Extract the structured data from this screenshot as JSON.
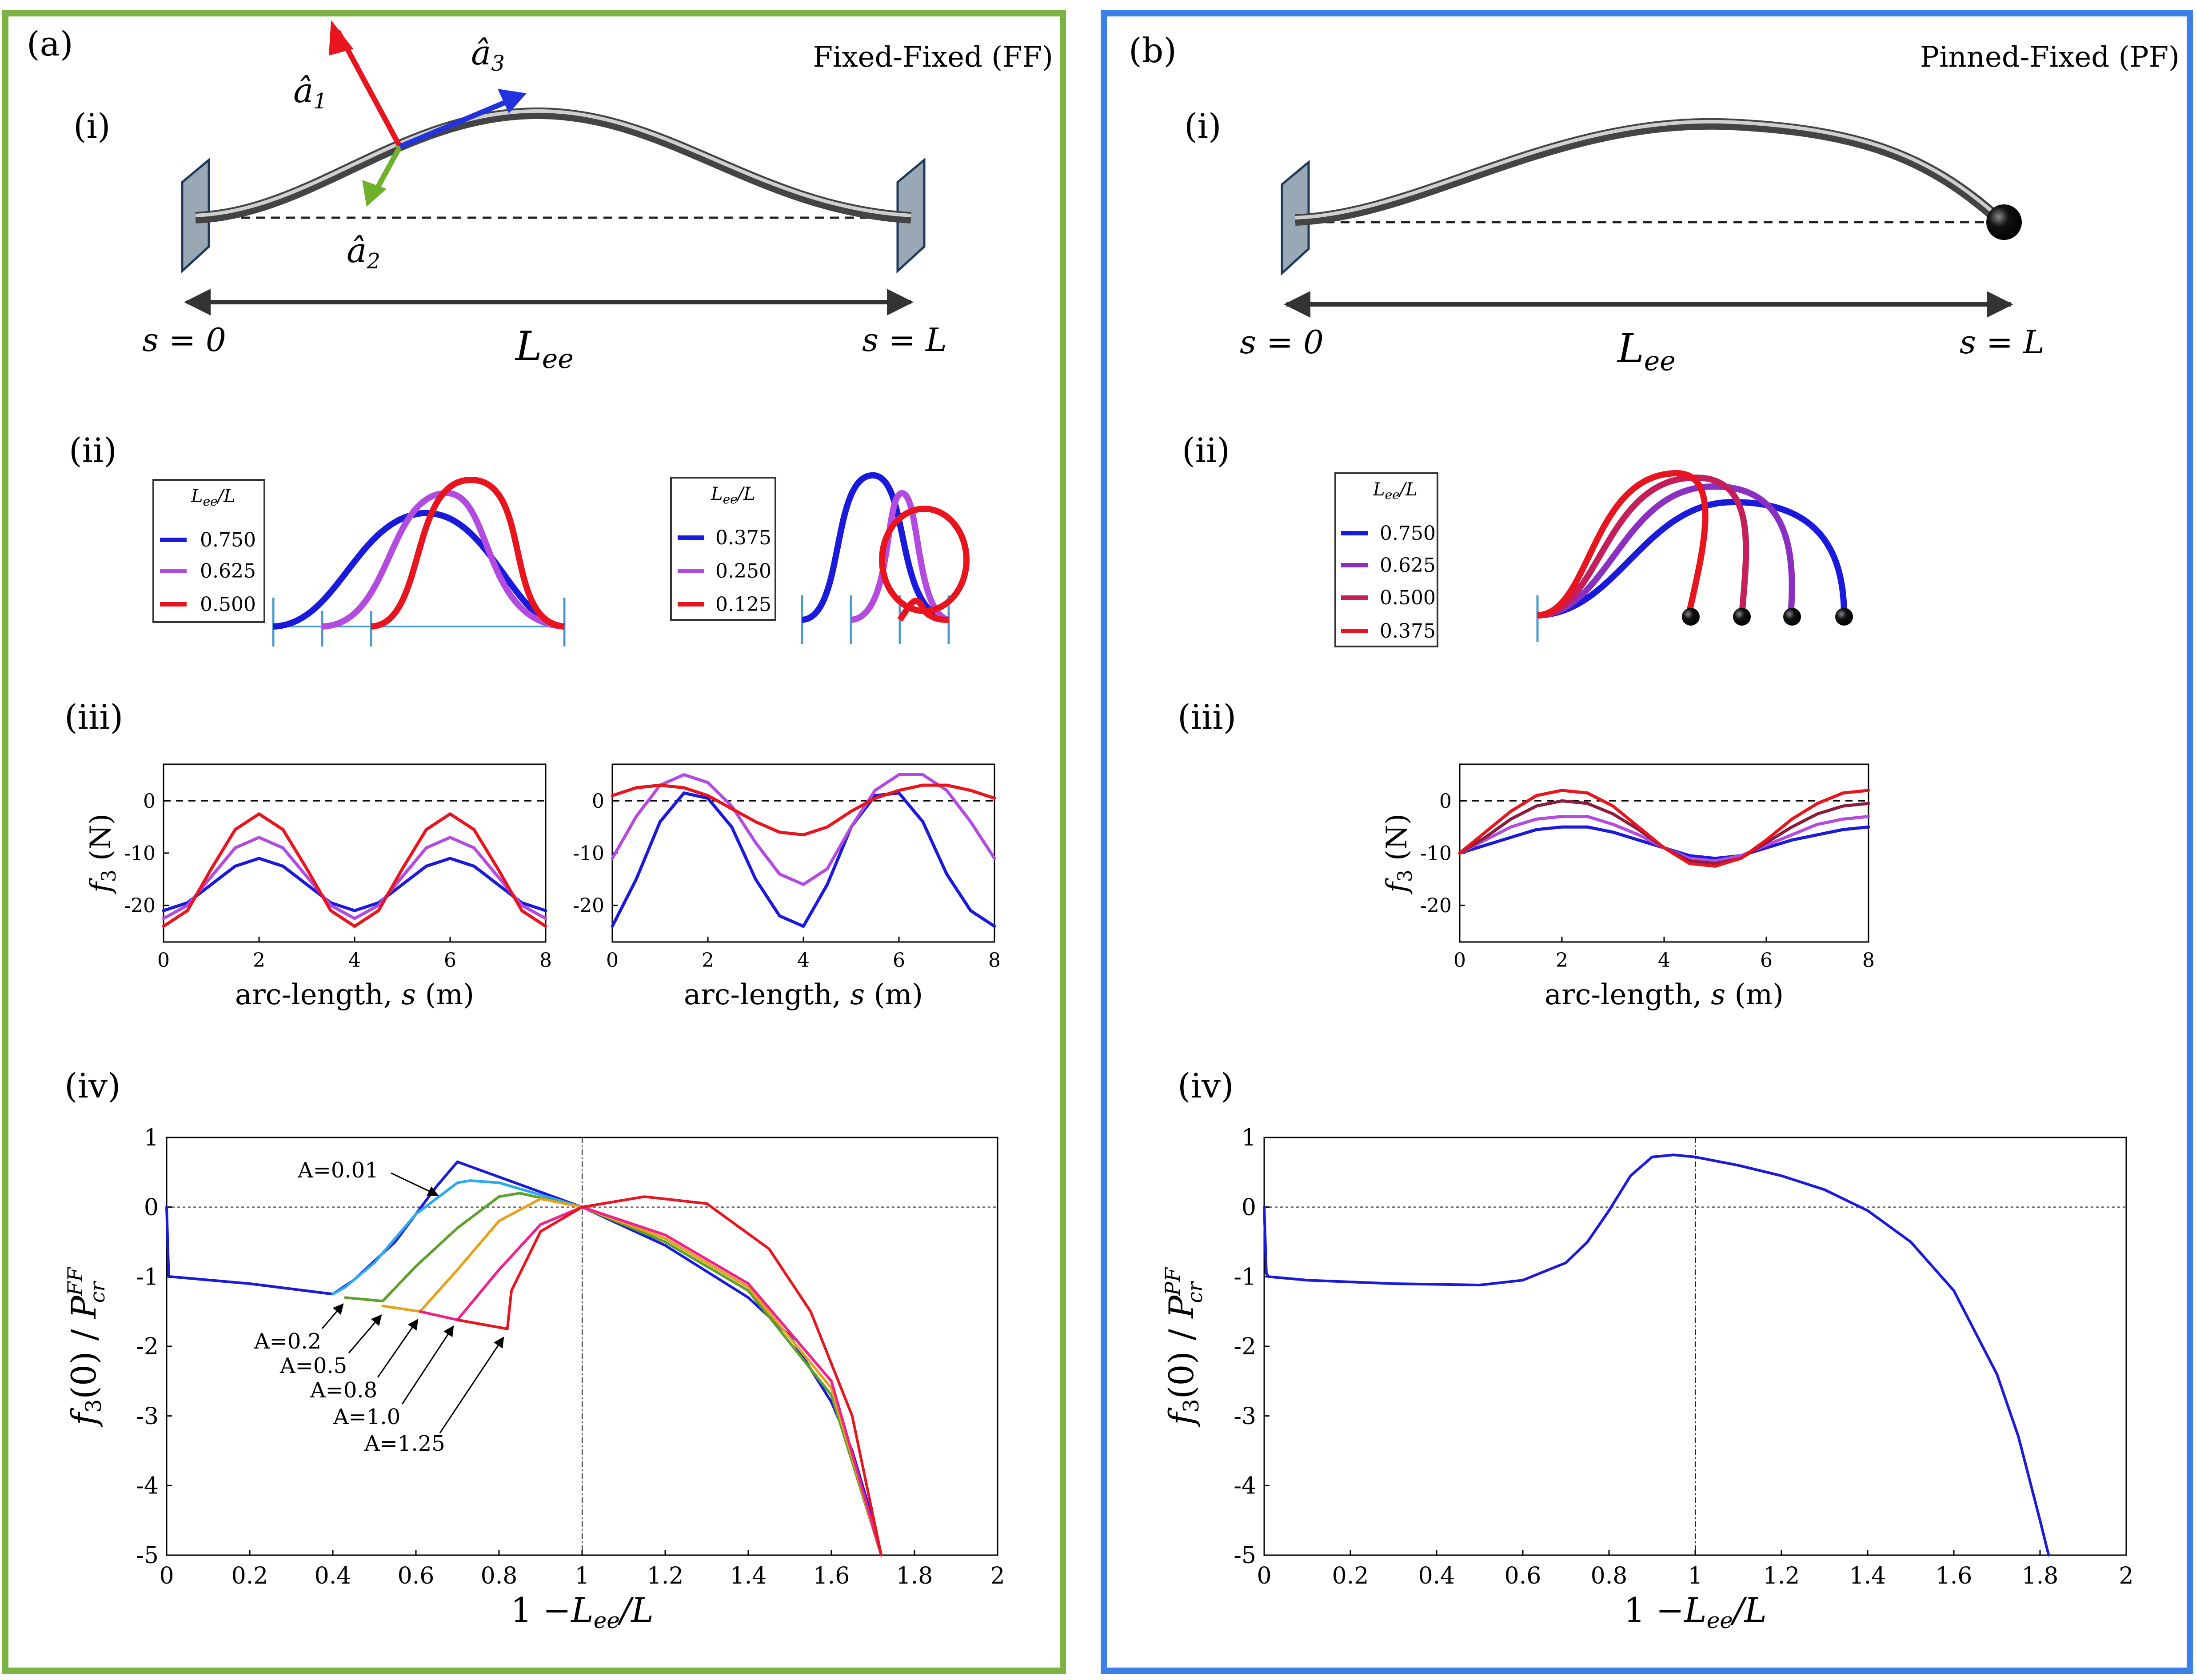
{
  "colors": {
    "ff_border": "#7cb342",
    "pf_border": "#3d7fe8",
    "blue": "#1a1adc",
    "purple": "#b44be0",
    "red": "#e8141e",
    "cyan": "#2eaaec",
    "green": "#5ea12c",
    "gold": "#e6a21c",
    "magenta": "#f0208c",
    "a1": "#e8141e",
    "a2": "#6fb12c",
    "a3": "#2233dd",
    "wall": "#9aa7b4"
  },
  "panel_a": {
    "label": "(a)",
    "title": "Fixed-Fixed (FF)",
    "sub_i": "(i)",
    "sub_ii": "(ii)",
    "sub_iii": "(iii)",
    "sub_iv": "(iv)",
    "a1": "â",
    "a1_sub": "1",
    "a2": "â",
    "a2_sub": "2",
    "a3": "â",
    "a3_sub": "3",
    "s0": "s = 0",
    "sL": "s = L",
    "Lee": "L",
    "Lee_sub": "ee",
    "legend_left": {
      "header": "L_ee/L",
      "entries": [
        "0.750",
        "0.625",
        "0.500"
      ]
    },
    "legend_right": {
      "header": "L_ee/L",
      "entries": [
        "0.375",
        "0.250",
        "0.125"
      ]
    }
  },
  "panel_b": {
    "label": "(b)",
    "title": "Pinned-Fixed (PF)",
    "sub_i": "(i)",
    "sub_ii": "(ii)",
    "sub_iii": "(iii)",
    "sub_iv": "(iv)",
    "s0": "s = 0",
    "sL": "s = L",
    "Lee": "L",
    "Lee_sub": "ee",
    "legend": {
      "header": "L_ee/L",
      "entries": [
        "0.750",
        "0.625",
        "0.500",
        "0.375"
      ]
    }
  },
  "chart_data": [
    {
      "id": "a_iii_left",
      "type": "line",
      "xlabel": "arc-length, s (m)",
      "ylabel": "f3 (N)",
      "xlim": [
        0,
        8
      ],
      "ylim": [
        -27,
        7
      ],
      "xticks": [
        "0",
        "2",
        "4",
        "6",
        "8"
      ],
      "yticks": [
        "0",
        "-10",
        "-20"
      ],
      "series": [
        {
          "name": "0.750",
          "color": "blue",
          "x": [
            0,
            0.5,
            1,
            1.5,
            2,
            2.5,
            3,
            3.5,
            4,
            4.5,
            5,
            5.5,
            6,
            6.5,
            7,
            7.5,
            8
          ],
          "values": [
            -21,
            -19.5,
            -16,
            -12.5,
            -11,
            -12.5,
            -16,
            -19.5,
            -21,
            -19.5,
            -16,
            -12.5,
            -11,
            -12.5,
            -16,
            -19.5,
            -21
          ]
        },
        {
          "name": "0.625",
          "color": "purple",
          "x": [
            0,
            0.5,
            1,
            1.5,
            2,
            2.5,
            3,
            3.5,
            4,
            4.5,
            5,
            5.5,
            6,
            6.5,
            7,
            7.5,
            8
          ],
          "values": [
            -22.5,
            -20,
            -14.5,
            -9,
            -7,
            -9,
            -14.5,
            -20,
            -22.5,
            -20,
            -14.5,
            -9,
            -7,
            -9,
            -14.5,
            -20,
            -22.5
          ]
        },
        {
          "name": "0.500",
          "color": "red",
          "x": [
            0,
            0.5,
            1,
            1.5,
            2,
            2.5,
            3,
            3.5,
            4,
            4.5,
            5,
            5.5,
            6,
            6.5,
            7,
            7.5,
            8
          ],
          "values": [
            -24,
            -21,
            -13,
            -5.5,
            -2.5,
            -5.5,
            -13,
            -21,
            -24,
            -21,
            -13,
            -5.5,
            -2.5,
            -5.5,
            -13,
            -21,
            -24
          ]
        }
      ]
    },
    {
      "id": "a_iii_right",
      "type": "line",
      "xlabel": "arc-length, s (m)",
      "ylabel": "",
      "xlim": [
        0,
        8
      ],
      "ylim": [
        -27,
        7
      ],
      "xticks": [
        "0",
        "2",
        "4",
        "6",
        "8"
      ],
      "yticks": [
        "0",
        "-10",
        "-20"
      ],
      "series": [
        {
          "name": "0.375",
          "color": "blue",
          "x": [
            0,
            0.5,
            1,
            1.5,
            2,
            2.5,
            3,
            3.5,
            4,
            4.5,
            5,
            5.5,
            6,
            6.5,
            7,
            7.5,
            8
          ],
          "values": [
            -24,
            -15,
            -4,
            1.5,
            0.5,
            -5,
            -15,
            -22,
            -24,
            -16,
            -5,
            1,
            1.5,
            -4,
            -14,
            -21,
            -24
          ]
        },
        {
          "name": "0.250",
          "color": "purple",
          "x": [
            0,
            0.5,
            1,
            1.5,
            2,
            2.5,
            3,
            3.5,
            4,
            4.5,
            5,
            5.5,
            6,
            6.5,
            7,
            7.5,
            8
          ],
          "values": [
            -11,
            -3,
            3,
            5,
            3.5,
            -1,
            -8,
            -14,
            -16,
            -13,
            -5,
            2,
            5,
            5,
            2,
            -4,
            -11
          ]
        },
        {
          "name": "0.125",
          "color": "red",
          "x": [
            0,
            0.5,
            1,
            1.5,
            2,
            2.5,
            3,
            3.5,
            4,
            4.5,
            5,
            5.5,
            6,
            6.5,
            7,
            7.5,
            8
          ],
          "values": [
            1,
            2.5,
            3,
            2.5,
            1,
            -1.5,
            -4,
            -6,
            -6.5,
            -5,
            -2,
            0.5,
            2,
            3,
            3,
            2,
            0.5
          ]
        }
      ]
    },
    {
      "id": "b_iii",
      "type": "line",
      "xlabel": "arc-length, s (m)",
      "ylabel": "f3 (N)",
      "xlim": [
        0,
        8
      ],
      "ylim": [
        -27,
        7
      ],
      "xticks": [
        "0",
        "2",
        "4",
        "6",
        "8"
      ],
      "yticks": [
        "0",
        "-10",
        "-20"
      ],
      "series": [
        {
          "name": "0.750",
          "color": "blue",
          "x": [
            0,
            0.5,
            1,
            1.5,
            2,
            2.5,
            3,
            3.5,
            4,
            4.5,
            5,
            5.5,
            6,
            6.5,
            7,
            7.5,
            8
          ],
          "values": [
            -10,
            -8.5,
            -7,
            -5.5,
            -5,
            -5,
            -6,
            -7.5,
            -9,
            -10.5,
            -11,
            -10.5,
            -9,
            -7.5,
            -6.5,
            -5.5,
            -5
          ]
        },
        {
          "name": "0.625",
          "color": "purple",
          "x": [
            0,
            0.5,
            1,
            1.5,
            2,
            2.5,
            3,
            3.5,
            4,
            4.5,
            5,
            5.5,
            6,
            6.5,
            7,
            7.5,
            8
          ],
          "values": [
            -10,
            -7.5,
            -5,
            -3.5,
            -3,
            -3,
            -4.5,
            -6.5,
            -9,
            -11,
            -11.5,
            -10.5,
            -8.5,
            -6.5,
            -4.5,
            -3.5,
            -3
          ]
        },
        {
          "name": "0.500",
          "color": "maroon",
          "x": [
            0,
            0.5,
            1,
            1.5,
            2,
            2.5,
            3,
            3.5,
            4,
            4.5,
            5,
            5.5,
            6,
            6.5,
            7,
            7.5,
            8
          ],
          "values": [
            -10,
            -7,
            -3.5,
            -1,
            0,
            -0.5,
            -2.5,
            -5.5,
            -9,
            -11.5,
            -12,
            -11,
            -8,
            -5,
            -2.5,
            -1,
            -0.5
          ]
        },
        {
          "name": "0.375",
          "color": "red",
          "x": [
            0,
            0.5,
            1,
            1.5,
            2,
            2.5,
            3,
            3.5,
            4,
            4.5,
            5,
            5.5,
            6,
            6.5,
            7,
            7.5,
            8
          ],
          "values": [
            -10,
            -6,
            -2,
            1,
            2,
            1.5,
            -1,
            -5,
            -9,
            -12,
            -12.5,
            -11,
            -7.5,
            -3.5,
            -0.5,
            1.5,
            2
          ]
        }
      ]
    },
    {
      "id": "a_iv",
      "type": "line",
      "xlabel": "1 −L_ee/L",
      "ylabel": "f3(0) / P_cr^FF",
      "xlim": [
        0,
        2
      ],
      "ylim": [
        -5,
        1
      ],
      "xticks": [
        "0",
        "0.2",
        "0.4",
        "0.6",
        "0.8",
        "1",
        "1.2",
        "1.4",
        "1.6",
        "1.8",
        "2"
      ],
      "yticks": [
        "1",
        "0",
        "-1",
        "-2",
        "-3",
        "-4",
        "-5"
      ],
      "annotations": [
        "A=0.01",
        "A=0.2",
        "A=0.5",
        "A=0.8",
        "A=1.0",
        "A=1.25"
      ],
      "series": [
        {
          "name": "A=0.01",
          "color": "blue",
          "x": [
            0,
            0.005,
            0.01,
            0.2,
            0.4,
            0.45,
            0.55,
            0.65,
            0.7,
            1.0,
            1.2,
            1.4,
            1.5,
            1.6,
            1.65,
            1.7,
            1.72
          ],
          "values": [
            0,
            -1.0,
            -1.0,
            -1.1,
            -1.25,
            -1.05,
            -0.5,
            0.3,
            0.65,
            0,
            -0.55,
            -1.3,
            -1.85,
            -2.8,
            -3.5,
            -4.5,
            -5
          ]
        },
        {
          "name": "A=0.2",
          "color": "cyan",
          "x": [
            0.4,
            0.43,
            0.5,
            0.6,
            0.7,
            0.73,
            0.8,
            1.0
          ],
          "values": [
            -1.25,
            -1.15,
            -0.8,
            -0.1,
            0.35,
            0.38,
            0.35,
            0
          ]
        },
        {
          "name": "A=0.5",
          "color": "green",
          "x": [
            0.43,
            0.52,
            0.6,
            0.7,
            0.8,
            0.85,
            1.0,
            1.2,
            1.4,
            1.6,
            1.72
          ],
          "values": [
            -1.3,
            -1.35,
            -0.85,
            -0.3,
            0.15,
            0.2,
            0,
            -0.5,
            -1.2,
            -2.7,
            -5
          ]
        },
        {
          "name": "A=0.8",
          "color": "gold",
          "x": [
            0.52,
            0.61,
            0.7,
            0.8,
            0.9,
            1.0,
            1.2,
            1.4,
            1.6,
            1.72
          ],
          "values": [
            -1.42,
            -1.5,
            -0.9,
            -0.2,
            0.12,
            0,
            -0.45,
            -1.15,
            -2.6,
            -5
          ]
        },
        {
          "name": "A=1.0",
          "color": "magenta",
          "x": [
            0.61,
            0.7,
            0.8,
            0.9,
            1.0,
            1.2,
            1.4,
            1.6,
            1.72
          ],
          "values": [
            -1.5,
            -1.62,
            -0.9,
            -0.25,
            0,
            -0.4,
            -1.1,
            -2.5,
            -5
          ]
        },
        {
          "name": "A=1.25",
          "color": "red",
          "x": [
            0.7,
            0.82,
            0.83,
            0.9,
            1.0,
            1.15,
            1.3,
            1.45,
            1.55,
            1.65,
            1.72
          ],
          "values": [
            -1.62,
            -1.75,
            -1.2,
            -0.35,
            0,
            0.15,
            0.05,
            -0.6,
            -1.5,
            -3.0,
            -5
          ]
        }
      ]
    },
    {
      "id": "b_iv",
      "type": "line",
      "xlabel": "1 −L_ee/L",
      "ylabel": "f3(0) / P_cr^PF",
      "xlim": [
        0,
        2
      ],
      "ylim": [
        -5,
        1
      ],
      "xticks": [
        "0",
        "0.2",
        "0.4",
        "0.6",
        "0.8",
        "1",
        "1.2",
        "1.4",
        "1.6",
        "1.8",
        "2"
      ],
      "yticks": [
        "1",
        "0",
        "-1",
        "-2",
        "-3",
        "-4",
        "-5"
      ],
      "series": [
        {
          "name": "PF",
          "color": "blue",
          "x": [
            0,
            0.005,
            0.01,
            0.1,
            0.3,
            0.5,
            0.6,
            0.7,
            0.75,
            0.8,
            0.85,
            0.9,
            0.95,
            1.0,
            1.1,
            1.2,
            1.3,
            1.4,
            1.5,
            1.6,
            1.7,
            1.75,
            1.8,
            1.82
          ],
          "values": [
            0,
            -0.95,
            -1.0,
            -1.05,
            -1.1,
            -1.12,
            -1.05,
            -0.8,
            -0.5,
            -0.05,
            0.45,
            0.72,
            0.75,
            0.72,
            0.6,
            0.45,
            0.25,
            -0.05,
            -0.5,
            -1.2,
            -2.4,
            -3.3,
            -4.5,
            -5
          ]
        }
      ]
    }
  ]
}
